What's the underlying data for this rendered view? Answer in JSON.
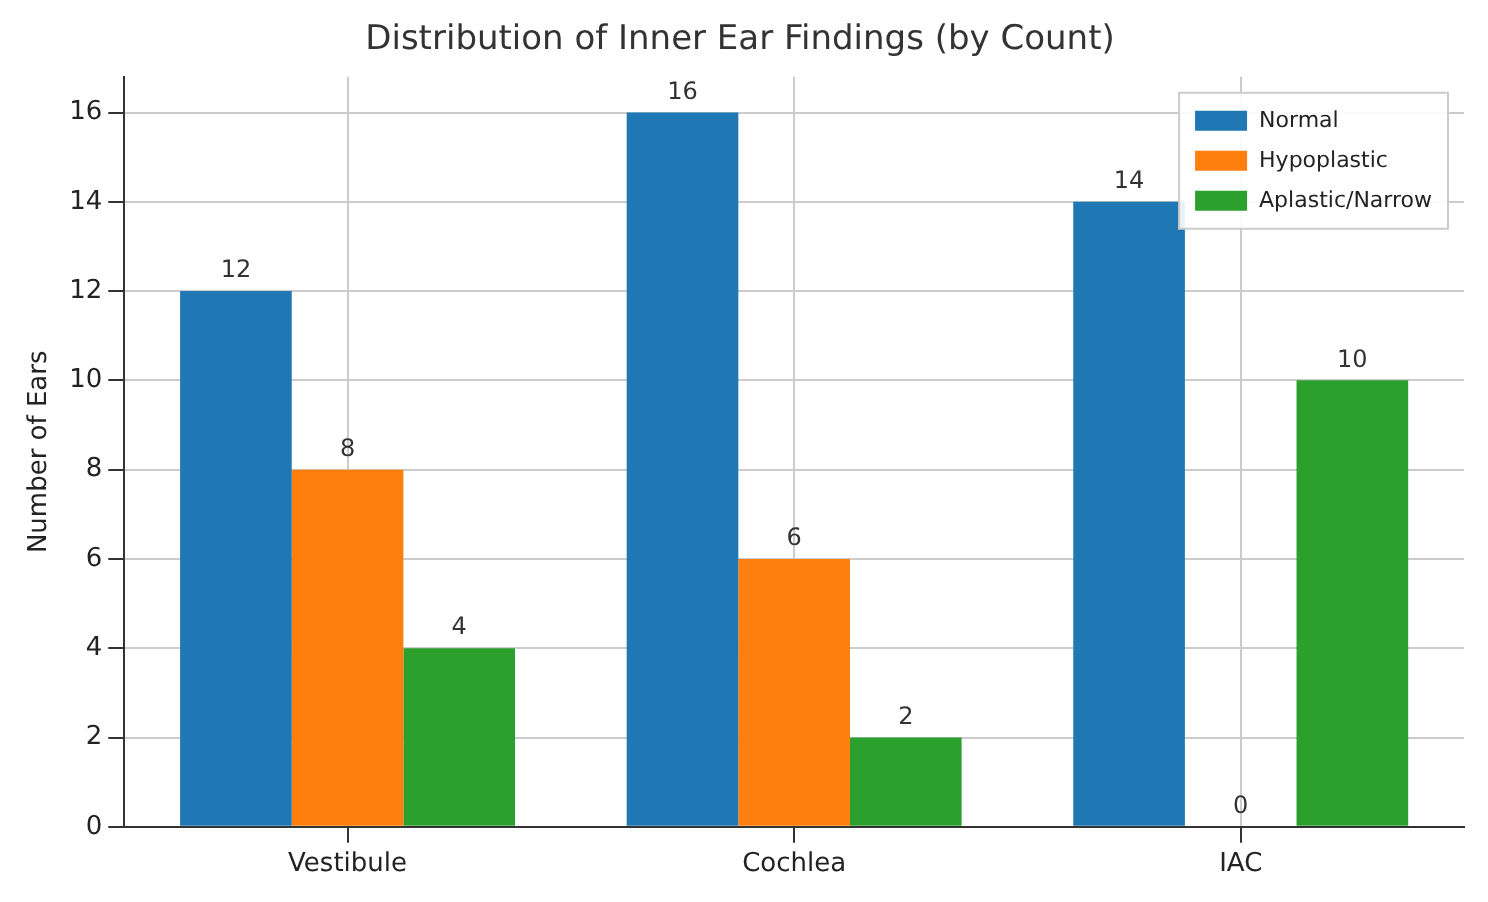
{
  "chart_data": {
    "type": "bar",
    "title": "Distribution of Inner Ear Findings (by Count)",
    "ylabel": "Number of Ears",
    "categories": [
      "Vestibule",
      "Cochlea",
      "IAC"
    ],
    "series": [
      {
        "name": "Normal",
        "color": "#1f77b4",
        "values": [
          12,
          16,
          14
        ]
      },
      {
        "name": "Hypoplastic",
        "color": "#ff7f0e",
        "values": [
          8,
          6,
          0
        ]
      },
      {
        "name": "Aplastic/Narrow",
        "color": "#2ca02c",
        "values": [
          4,
          2,
          10
        ]
      }
    ],
    "ylim": [
      0,
      16.8
    ],
    "yticks": [
      0,
      2,
      4,
      6,
      8,
      10,
      12,
      14,
      16
    ],
    "grid": true,
    "legend": "top right",
    "data_labels": true
  }
}
